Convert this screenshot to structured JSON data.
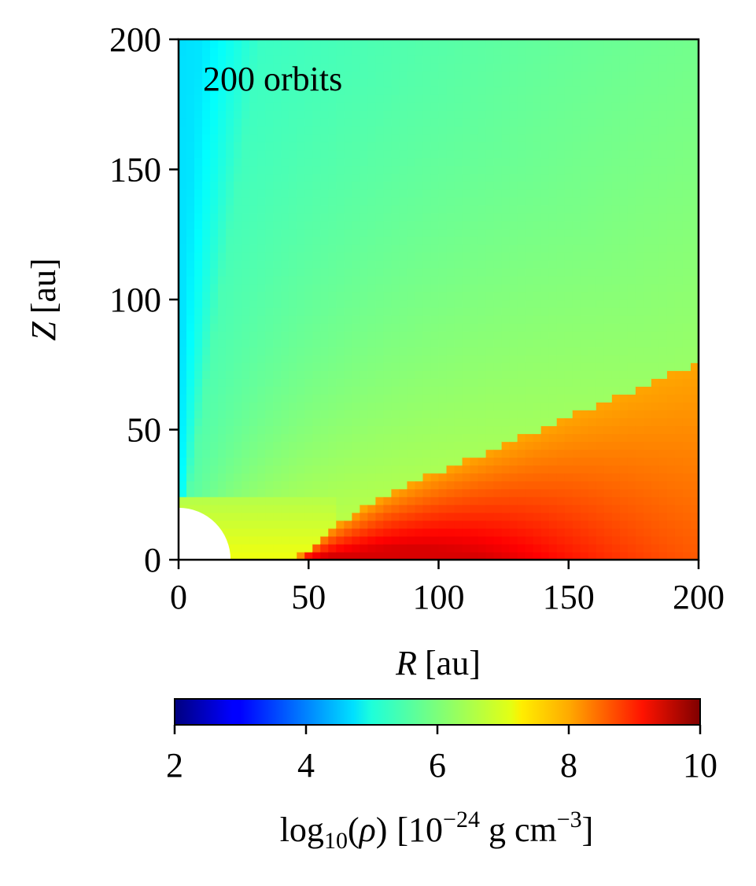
{
  "chart_data": {
    "type": "heatmap",
    "title": "",
    "annotation": "200 orbits",
    "xlabel": {
      "var": "R",
      "unit": "[au]"
    },
    "ylabel": {
      "var": "Z",
      "unit": "[au]"
    },
    "xlim": [
      0,
      200
    ],
    "ylim": [
      0,
      200
    ],
    "xticks": [
      0,
      50,
      100,
      150,
      200
    ],
    "yticks": [
      0,
      50,
      100,
      150,
      200
    ],
    "inner_boundary_radius_au": 20,
    "colormap": "jet",
    "colorbar": {
      "orientation": "horizontal",
      "placement": "bottom",
      "range": [
        2,
        10
      ],
      "ticks": [
        2,
        4,
        6,
        8,
        10
      ],
      "label": "log10(ρ) [10^−24 g cm^−3]",
      "label_parts": {
        "func": "log",
        "sub": "10",
        "open": "(",
        "var": "ρ",
        "close": ")",
        "unit_pre": "[10",
        "exp1": "−24",
        "unit_mid": " g cm",
        "exp2": "−3",
        "unit_post": "]"
      }
    },
    "field": {
      "description_values": {
        "background_upper_region": 5.6,
        "near_axis_minimum": 4.8,
        "disk_surface_region": 7.0,
        "disk_midplane_maximum": 9.3
      },
      "disk_surface_Z_at_R": {
        "R": [
          45,
          60,
          80,
          100,
          120,
          150,
          175,
          200
        ],
        "Z": [
          0,
          13,
          25,
          34,
          42,
          55,
          65,
          76
        ]
      },
      "dense_core": {
        "R_range": [
          45,
          200
        ],
        "peak_R": 80,
        "peak_value": 9.3
      }
    }
  }
}
